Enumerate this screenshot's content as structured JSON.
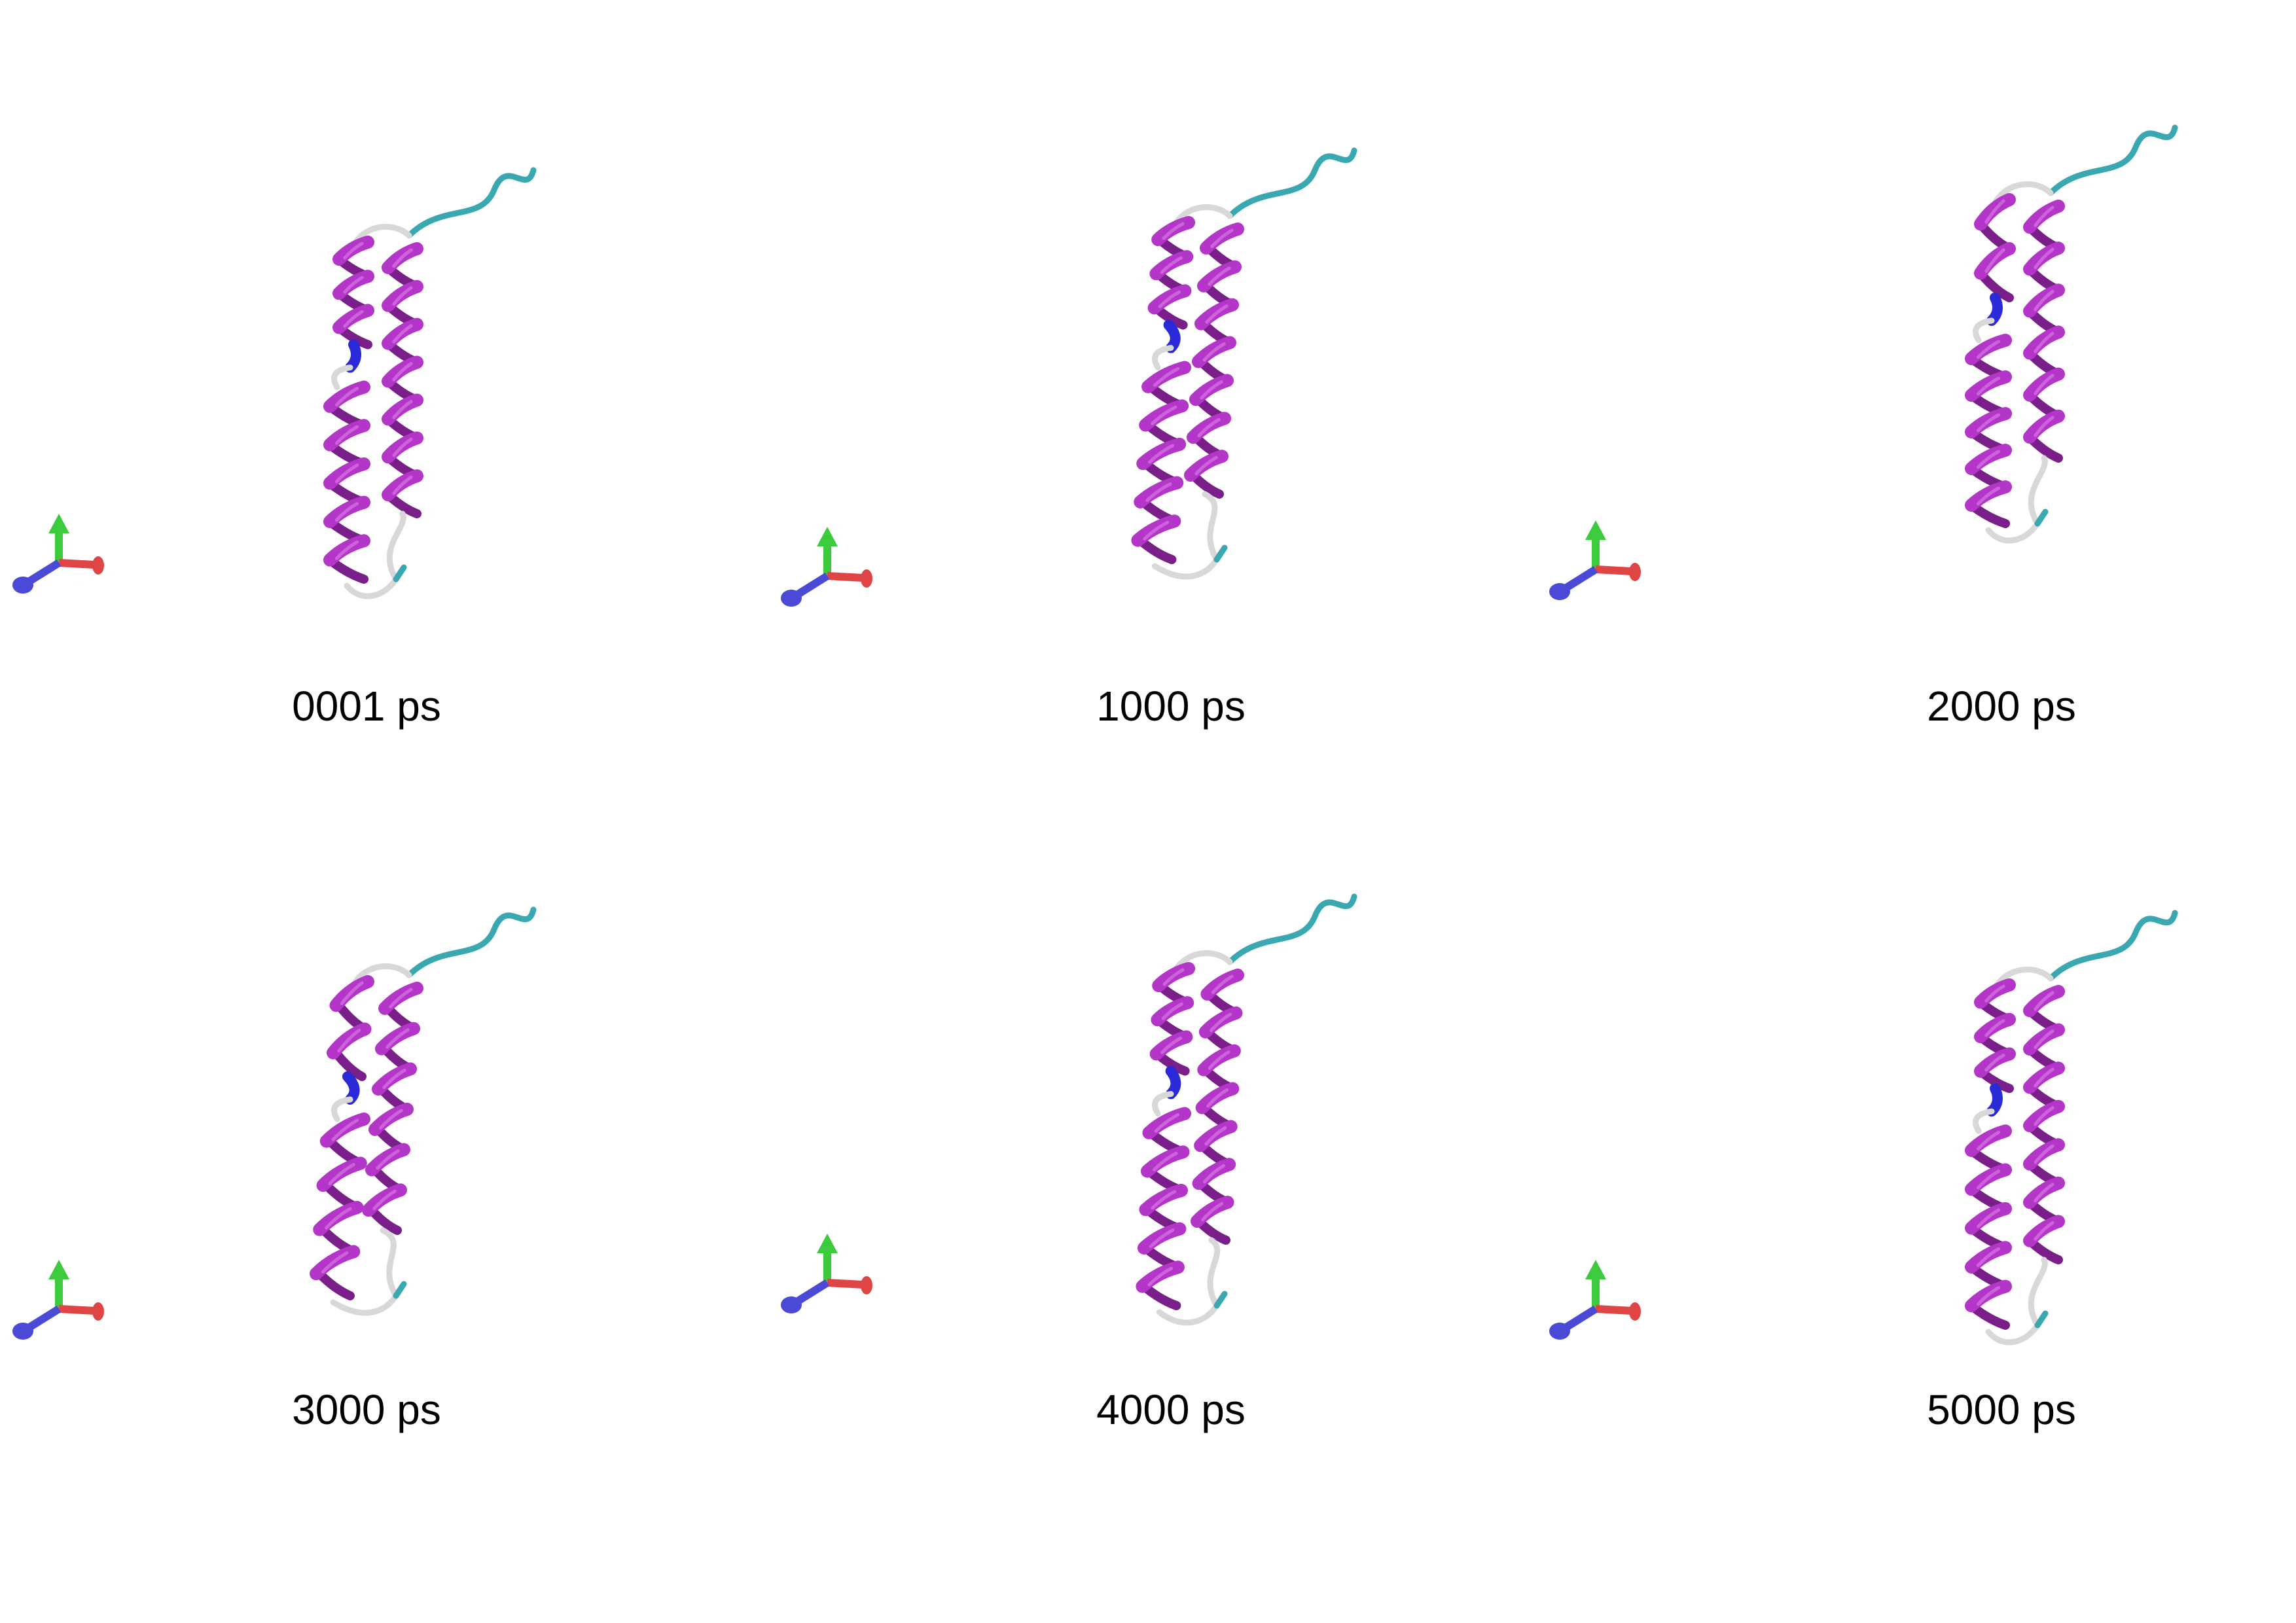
{
  "figure": {
    "colors": {
      "helix": "#b436c8",
      "helix_dark": "#7a1f8a",
      "helix_light": "#d46ee2",
      "bend_310": "#2a2ad8",
      "turn": "#3aa8b0",
      "coil": "#d8d8d8",
      "axis_x": "#e04545",
      "axis_y": "#3ccb3c",
      "axis_z": "#4a4ad6",
      "background": "#ffffff"
    },
    "panels": [
      {
        "time_label": "0001 ps"
      },
      {
        "time_label": "1000 ps"
      },
      {
        "time_label": "2000 ps"
      },
      {
        "time_label": "3000 ps"
      },
      {
        "time_label": "4000 ps"
      },
      {
        "time_label": "5000 ps"
      }
    ]
  }
}
